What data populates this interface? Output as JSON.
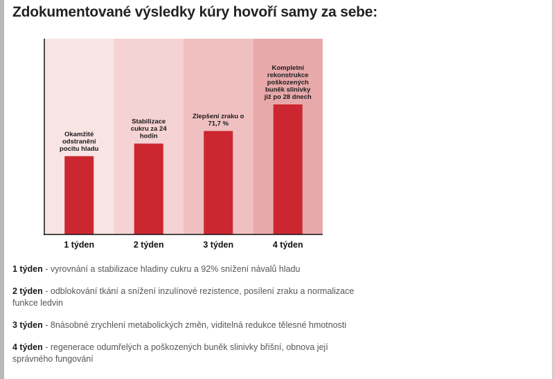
{
  "heading": "Zdokumentované výsledky kúry hovoří samy za sebe:",
  "chart_data": {
    "type": "bar",
    "categories": [
      "1 týden",
      "2 týden",
      "3 týden",
      "4 týden"
    ],
    "values": [
      112,
      130,
      148,
      186
    ],
    "bar_labels": [
      [
        "Okamžité",
        "odstranění",
        "pocitu hladu"
      ],
      [
        "Stabilizace",
        "cukru za 24",
        "hodin"
      ],
      [
        "Zlepšení zraku o",
        "71,7 %"
      ],
      [
        "Kompletní",
        "rekonstrukce",
        "poškozených",
        "buněk slinivky",
        "již po 28 dnech"
      ]
    ],
    "ylim": [
      0,
      280
    ],
    "grid": false,
    "colors": {
      "bar": "#cc2730",
      "band_backgrounds": [
        "#f9e4e4",
        "#f5d2d3",
        "#f0c0c1",
        "#e8a9ab"
      ],
      "axis": "#111111"
    }
  },
  "notes": [
    {
      "week": "1 týden",
      "text": " - vyrovnání a stabilizace hladiny cukru a 92% snížení návalů hladu"
    },
    {
      "week": "2 týden",
      "text": " - odblokování tkání a snížení inzulínové rezistence, posílení zraku a normalizace funkce ledvin"
    },
    {
      "week": "3 týden",
      "text": " - 8násobné zrychlení metabolických změn, viditelná redukce tělesné hmotnosti"
    },
    {
      "week": "4 týden",
      "text": " - regenerace odumřelých a poškozených buněk slinivky břišní, obnova její správného fungování"
    }
  ]
}
